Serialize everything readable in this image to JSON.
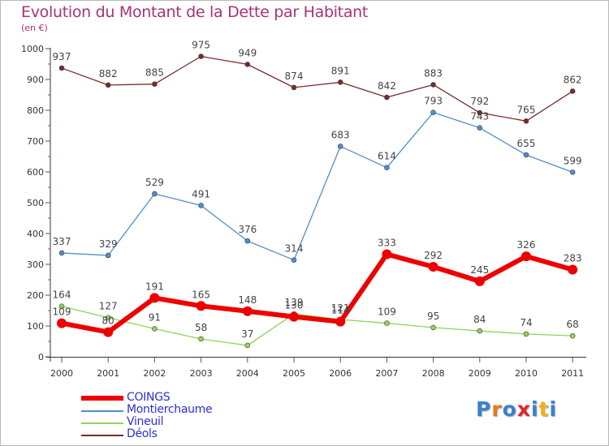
{
  "chart_data": {
    "type": "line",
    "title": "Evolution du Montant de la Dette par Habitant",
    "subtitle": "(en €)",
    "xlabel": "",
    "ylabel": "",
    "categories": [
      "2000",
      "2001",
      "2002",
      "2003",
      "2004",
      "2005",
      "2006",
      "2007",
      "2008",
      "2009",
      "2010",
      "2011"
    ],
    "ylim": [
      0,
      1000
    ],
    "yticks": [
      0,
      100,
      200,
      300,
      400,
      500,
      600,
      700,
      800,
      900,
      1000
    ],
    "grid": false,
    "legend_position": "bottom-left",
    "series": [
      {
        "name": "COINGS",
        "color": "#ee0000",
        "values": [
          109,
          80,
          191,
          165,
          148,
          130,
          114,
          333,
          292,
          245,
          326,
          283
        ]
      },
      {
        "name": "Montierchaume",
        "color": "#4f8fcc",
        "values": [
          337,
          329,
          529,
          491,
          376,
          314,
          683,
          614,
          793,
          743,
          655,
          599
        ]
      },
      {
        "name": "Vineuil",
        "color": "#92d25a",
        "values": [
          164,
          127,
          91,
          58,
          37,
          139,
          121,
          109,
          95,
          84,
          74,
          68
        ]
      },
      {
        "name": "Déols",
        "color": "#7a2a2a",
        "values": [
          937,
          882,
          885,
          975,
          949,
          874,
          891,
          842,
          883,
          792,
          765,
          862
        ]
      }
    ]
  },
  "logo": {
    "letters": [
      "P",
      "r",
      "o",
      "x",
      "i",
      "t",
      "i"
    ],
    "colors": [
      "#3a7fd5",
      "#e87a1c",
      "#3a7fd5",
      "#e0262b",
      "#3a7fd5",
      "#f2b01e",
      "#3a7fd5"
    ]
  }
}
